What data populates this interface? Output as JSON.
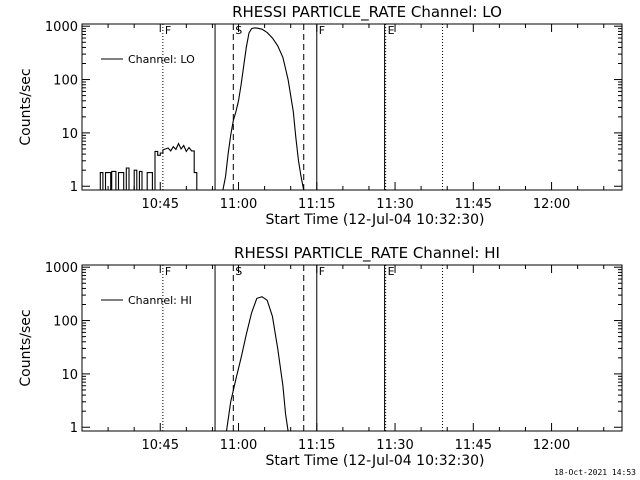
{
  "chart_data": [
    {
      "type": "line",
      "title": "RHESSI PARTICLE_RATE Channel: LO",
      "ylabel": "Counts/sec",
      "xlabel": "Start Time (12-Jul-04 10:32:30)",
      "yscale": "log",
      "ylim": [
        0.85,
        1100
      ],
      "xlim_min": [
        -2.5,
        101
      ],
      "xticks_min": [
        12.5,
        27.5,
        42.5,
        57.5,
        72.5,
        87.5
      ],
      "xtick_labels": [
        "10:45",
        "11:00",
        "11:15",
        "11:30",
        "11:45",
        "12:00"
      ],
      "yticks": [
        1,
        10,
        100,
        1000
      ],
      "ytick_labels": [
        "1",
        "10",
        "100",
        "1000"
      ],
      "legend": "Channel: LO",
      "legend_position": "top-left",
      "markers": [
        {
          "x": 13.0,
          "style": "dotted",
          "label": "F"
        },
        {
          "x": 23.0,
          "style": "solid",
          "label": ""
        },
        {
          "x": 26.5,
          "style": "dashed",
          "label": "S"
        },
        {
          "x": 40.0,
          "style": "dashed",
          "label": ""
        },
        {
          "x": 42.5,
          "style": "solid",
          "label": "F"
        },
        {
          "x": 55.5,
          "style": "solid",
          "label": ""
        },
        {
          "x": 55.7,
          "style": "dotted",
          "label": "E"
        },
        {
          "x": 66.6,
          "style": "dotted",
          "label": ""
        }
      ],
      "series": [
        {
          "name": "Channel: LO",
          "x": [
            1,
            1,
            1.5,
            1.5,
            2,
            2,
            3,
            3,
            3.2,
            3.2,
            4,
            4,
            4.5,
            4.5,
            5.5,
            5.5,
            6,
            6,
            6.5,
            6.5,
            7.5,
            7.5,
            8,
            8,
            8.5,
            8.5,
            9,
            9,
            10,
            10,
            11,
            11,
            11.5,
            11.5,
            12,
            12,
            12.5,
            12.5,
            13,
            13,
            14,
            14.5,
            15,
            15.5,
            16,
            16.5,
            17,
            17.5,
            18,
            18.5,
            19,
            19,
            19.5,
            19.5
          ],
          "y": [
            0.85,
            1.8,
            1.8,
            0.85,
            0.85,
            1.8,
            1.8,
            0.85,
            0.85,
            1.9,
            1.9,
            0.85,
            0.85,
            1.8,
            1.8,
            0.85,
            0.85,
            2.2,
            2.2,
            0.85,
            0.85,
            2.0,
            2.0,
            0.85,
            0.85,
            1.9,
            1.9,
            0.85,
            0.85,
            1.8,
            1.8,
            0.85,
            0.85,
            4.5,
            4.5,
            3.8,
            3.8,
            4.2,
            4.2,
            4.8,
            5.2,
            4.6,
            5.5,
            4.9,
            6.3,
            5.0,
            5.8,
            4.5,
            5.3,
            4.6,
            4.6,
            1.8,
            1.8,
            0.85
          ]
        },
        {
          "name": "Channel: LO",
          "x": [
            24.5,
            25,
            25.5,
            26,
            26.5,
            27,
            27.5,
            28,
            28.5,
            29,
            29.5,
            30,
            30.5,
            31,
            32,
            33,
            34,
            35,
            36,
            37,
            38,
            38.5,
            39,
            39.5,
            40
          ],
          "y": [
            0.85,
            1.5,
            4,
            9,
            17,
            25,
            40,
            80,
            180,
            400,
            750,
            900,
            930,
            920,
            880,
            760,
            600,
            430,
            260,
            100,
            25,
            8,
            3,
            1.5,
            0.85
          ]
        }
      ]
    },
    {
      "type": "line",
      "title": "RHESSI PARTICLE_RATE Channel: HI",
      "ylabel": "Counts/sec",
      "xlabel": "Start Time (12-Jul-04 10:32:30)",
      "yscale": "log",
      "ylim": [
        0.85,
        1100
      ],
      "xlim_min": [
        -2.5,
        101
      ],
      "xticks_min": [
        12.5,
        27.5,
        42.5,
        57.5,
        72.5,
        87.5
      ],
      "xtick_labels": [
        "10:45",
        "11:00",
        "11:15",
        "11:30",
        "11:45",
        "12:00"
      ],
      "yticks": [
        1,
        10,
        100,
        1000
      ],
      "ytick_labels": [
        "1",
        "10",
        "100",
        "1000"
      ],
      "legend": "Channel: HI",
      "legend_position": "top-left",
      "markers": [
        {
          "x": 13.0,
          "style": "dotted",
          "label": "F"
        },
        {
          "x": 23.0,
          "style": "solid",
          "label": ""
        },
        {
          "x": 26.5,
          "style": "dashed",
          "label": "S"
        },
        {
          "x": 40.0,
          "style": "dashed",
          "label": ""
        },
        {
          "x": 42.5,
          "style": "solid",
          "label": "F"
        },
        {
          "x": 55.5,
          "style": "solid",
          "label": ""
        },
        {
          "x": 55.7,
          "style": "dotted",
          "label": "E"
        },
        {
          "x": 66.6,
          "style": "dotted",
          "label": ""
        }
      ],
      "series": [
        {
          "name": "Channel: HI",
          "x": [
            25.2,
            26,
            27,
            28,
            29,
            30,
            31,
            32,
            33,
            34,
            35,
            36,
            36.5,
            37
          ],
          "y": [
            0.85,
            3,
            8,
            20,
            55,
            140,
            260,
            280,
            240,
            120,
            30,
            6,
            1.8,
            0.85
          ]
        }
      ]
    }
  ],
  "footer": {
    "date": "18-Oct-2021 14:53"
  }
}
